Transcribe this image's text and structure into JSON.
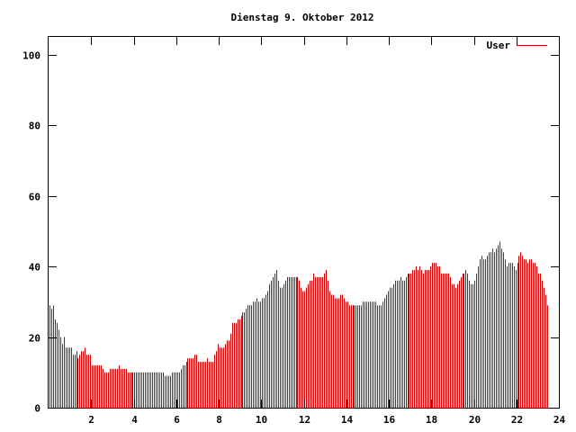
{
  "chart_data": {
    "type": "bar",
    "title": "Dienstag 9. Oktober 2012",
    "xlabel": "",
    "ylabel": "",
    "xlim": [
      0,
      24
    ],
    "ylim": [
      0,
      105
    ],
    "x_ticks": [
      2,
      4,
      6,
      8,
      10,
      12,
      14,
      16,
      18,
      20,
      22,
      24
    ],
    "x_tick_labels": [
      "2",
      "4",
      "6",
      "8",
      "10",
      "12",
      "14",
      "16",
      "18",
      "20",
      "22",
      "24"
    ],
    "y_ticks": [
      0,
      20,
      40,
      60,
      80,
      100
    ],
    "y_tick_labels": [
      "0",
      "20",
      "40",
      "60",
      "80",
      "100"
    ],
    "grid": false,
    "legend_position": "top-right",
    "colors": {
      "series": "#cc0000",
      "axes": "#000000",
      "background": "#ffffff"
    },
    "series": [
      {
        "name": "User",
        "interval_hours": 0.0833,
        "values": [
          29,
          28,
          29,
          25,
          24,
          22,
          20,
          18,
          20,
          17,
          17,
          17,
          17,
          15,
          15,
          16,
          14,
          15,
          16,
          16,
          17,
          15,
          15,
          15,
          12,
          12,
          12,
          12,
          12,
          12,
          11,
          10,
          10,
          10,
          11,
          11,
          11,
          11,
          11,
          12,
          11,
          11,
          11,
          11,
          10,
          10,
          10,
          10,
          10,
          10,
          10,
          10,
          10,
          10,
          10,
          10,
          10,
          10,
          10,
          10,
          10,
          10,
          10,
          10,
          10,
          9,
          9,
          9,
          9,
          10,
          10,
          10,
          10,
          10,
          11,
          12,
          12,
          13,
          14,
          14,
          14,
          14,
          15,
          15,
          13,
          13,
          13,
          13,
          13,
          14,
          13,
          13,
          13,
          15,
          16,
          18,
          17,
          17,
          17,
          18,
          19,
          19,
          21,
          24,
          24,
          24,
          25,
          25,
          26,
          27,
          27,
          28,
          29,
          29,
          29,
          30,
          30,
          31,
          30,
          30,
          31,
          31,
          32,
          33,
          35,
          36,
          37,
          38,
          39,
          36,
          34,
          34,
          35,
          36,
          37,
          37,
          37,
          37,
          37,
          37,
          37,
          36,
          34,
          33,
          33,
          34,
          35,
          36,
          36,
          38,
          37,
          37,
          37,
          37,
          37,
          38,
          39,
          36,
          33,
          32,
          32,
          31,
          31,
          31,
          32,
          32,
          31,
          30,
          30,
          29,
          29,
          29,
          29,
          29,
          29,
          29,
          29,
          30,
          30,
          30,
          30,
          30,
          30,
          30,
          30,
          29,
          29,
          29,
          30,
          31,
          32,
          33,
          34,
          34,
          35,
          36,
          36,
          36,
          37,
          36,
          36,
          37,
          38,
          38,
          38,
          39,
          39,
          40,
          39,
          40,
          39,
          38,
          39,
          39,
          39,
          40,
          41,
          41,
          41,
          40,
          40,
          38,
          38,
          38,
          38,
          38,
          37,
          35,
          35,
          34,
          35,
          36,
          37,
          38,
          38,
          39,
          38,
          36,
          35,
          35,
          36,
          38,
          40,
          42,
          43,
          42,
          42,
          43,
          44,
          44,
          45,
          44,
          45,
          46,
          47,
          45,
          44,
          42,
          40,
          41,
          41,
          41,
          40,
          39,
          41,
          43,
          44,
          43,
          42,
          42,
          41,
          42,
          42,
          41,
          41,
          40,
          38,
          38,
          36,
          34,
          32,
          29
        ]
      }
    ]
  }
}
